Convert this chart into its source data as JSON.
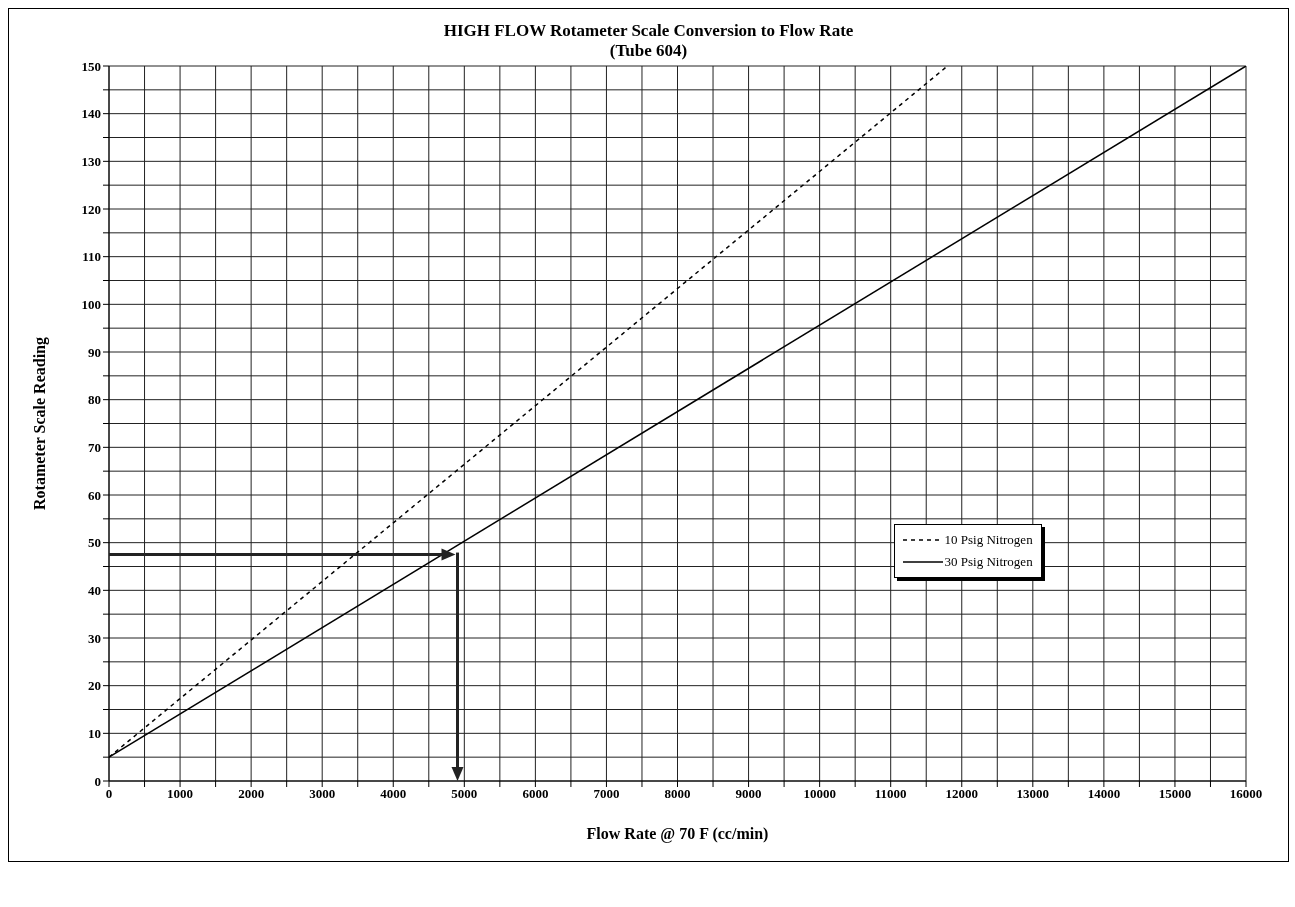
{
  "chart_data": {
    "type": "line",
    "title": "HIGH FLOW Rotameter Scale Conversion to Flow Rate",
    "subtitle": "(Tube 604)",
    "xlabel": "Flow Rate @ 70 F (cc/min)",
    "ylabel": "Rotameter Scale Reading",
    "series": [
      {
        "name": "10 Psig Nitrogen",
        "color": "#000000",
        "line_style": "dashed",
        "x": [
          0,
          11800
        ],
        "values": [
          5,
          150
        ]
      },
      {
        "name": "30 Psig Nitrogen",
        "color": "#000000",
        "line_style": "solid",
        "x": [
          0,
          16000
        ],
        "values": [
          5,
          150
        ]
      }
    ],
    "xlim": [
      0,
      16000
    ],
    "xticks": [
      0,
      {
        "value": 500,
        "label": null
      },
      1000,
      {
        "value": 1500,
        "label": null
      },
      2000,
      {
        "value": 2500,
        "label": null
      },
      3000,
      {
        "value": 3500,
        "label": null
      },
      4000,
      {
        "value": 4500,
        "label": null
      },
      5000,
      {
        "value": 5500,
        "label": null
      },
      6000,
      {
        "value": 6500,
        "label": null
      },
      7000,
      {
        "value": 7500,
        "label": null
      },
      8000,
      {
        "value": 8500,
        "label": null
      },
      9000,
      {
        "value": 9500,
        "label": null
      },
      10000,
      {
        "value": 10500,
        "label": null
      },
      11000,
      {
        "value": 11500,
        "label": null
      },
      12000,
      {
        "value": 12500,
        "label": null
      },
      13000,
      {
        "value": 13500,
        "label": null
      },
      14000,
      {
        "value": 14500,
        "label": null
      },
      15000,
      {
        "value": 15500,
        "label": null
      },
      16000
    ],
    "ylim": [
      0,
      150
    ],
    "yticks": [
      0,
      {
        "value": 5,
        "label": null
      },
      10,
      {
        "value": 15,
        "label": null
      },
      20,
      {
        "value": 25,
        "label": null
      },
      30,
      {
        "value": 35,
        "label": null
      },
      40,
      {
        "value": 45,
        "label": null
      },
      50,
      {
        "value": 55,
        "label": null
      },
      60,
      {
        "value": 65,
        "label": null
      },
      70,
      {
        "value": 75,
        "label": null
      },
      80,
      {
        "value": 85,
        "label": null
      },
      90,
      {
        "value": 95,
        "label": null
      },
      100,
      {
        "value": 105,
        "label": null
      },
      110,
      {
        "value": 115,
        "label": null
      },
      120,
      {
        "value": 125,
        "label": null
      },
      130,
      {
        "value": 135,
        "label": null
      },
      140,
      {
        "value": 145,
        "label": null
      },
      150
    ],
    "grid": true,
    "legend": "right",
    "marker": "none"
  }
}
